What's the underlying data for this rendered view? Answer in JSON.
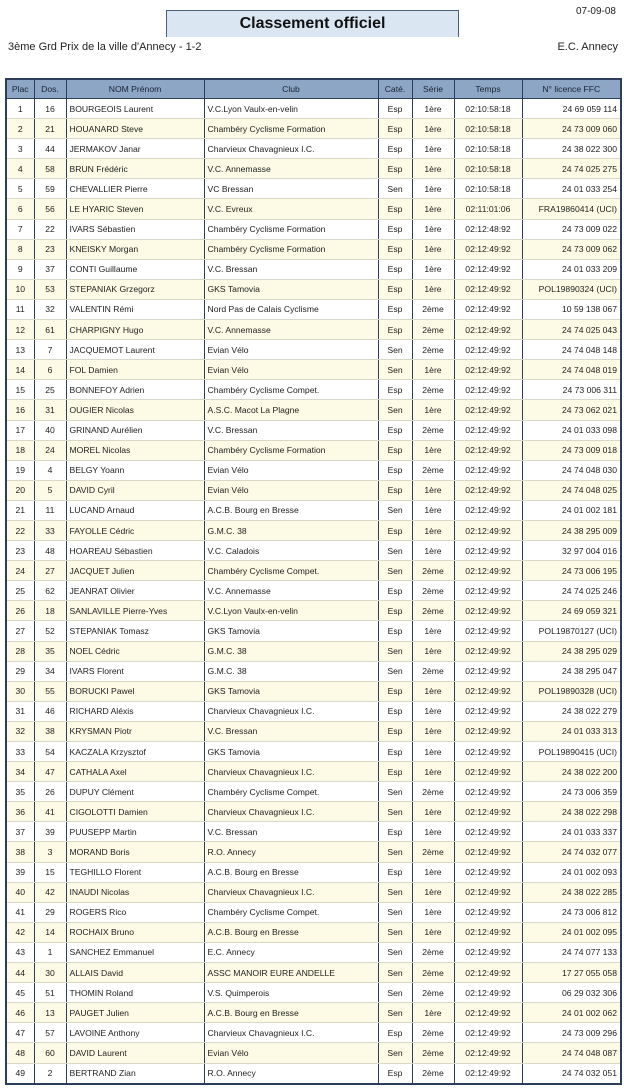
{
  "header": {
    "title": "Classement officiel",
    "date": "07-09-08",
    "event": "3ème Grd Prix de la ville d'Annecy - 1-2",
    "organizer": "E.C. Annecy"
  },
  "colors": {
    "header_bg": "#8ea6c6",
    "title_bg": "#dbe6f3",
    "alt_row": "#fdfbe5",
    "border": "#2c3e5c"
  },
  "table": {
    "columns": [
      "Plac",
      "Dos.",
      "NOM Prénom",
      "Club",
      "Caté.",
      "Série",
      "Temps",
      "N° licence FFC"
    ],
    "rows": [
      [
        "1",
        "16",
        "BOURGEOIS Laurent",
        "V.C.Lyon Vaulx-en-velin",
        "Esp",
        "1ère",
        "02:10:58:18",
        "24 69 059 114"
      ],
      [
        "2",
        "21",
        "HOUANARD Steve",
        "Chambéry Cyclisme Formation",
        "Esp",
        "1ère",
        "02:10:58:18",
        "24 73 009 060"
      ],
      [
        "3",
        "44",
        "JERMAKOV Janar",
        "Charvieux Chavagnieux I.C.",
        "Esp",
        "1ère",
        "02:10:58:18",
        "24 38 022 300"
      ],
      [
        "4",
        "58",
        "BRUN Frédéric",
        "V.C. Annemasse",
        "Esp",
        "1ère",
        "02:10:58:18",
        "24 74 025 275"
      ],
      [
        "5",
        "59",
        "CHEVALLIER Pierre",
        "VC Bressan",
        "Sen",
        "1ère",
        "02:10:58:18",
        "24 01 033 254"
      ],
      [
        "6",
        "56",
        "LE HYARIC Steven",
        "V.C. Evreux",
        "Esp",
        "1ère",
        "02:11:01:06",
        "FRA19860414 (UCI)"
      ],
      [
        "7",
        "22",
        "IVARS Sébastien",
        "Chambéry Cyclisme Formation",
        "Esp",
        "1ère",
        "02:12:48:92",
        "24 73 009 022"
      ],
      [
        "8",
        "23",
        "KNEISKY Morgan",
        "Chambéry Cyclisme Formation",
        "Esp",
        "1ère",
        "02:12:49:92",
        "24 73 009 062"
      ],
      [
        "9",
        "37",
        "CONTI Guillaume",
        "V.C. Bressan",
        "Esp",
        "1ère",
        "02:12:49:92",
        "24 01 033 209"
      ],
      [
        "10",
        "53",
        "STEPANIAK Grzegorz",
        "GKS Tamovia",
        "Esp",
        "1ère",
        "02:12:49:92",
        "POL19890324 (UCI)"
      ],
      [
        "11",
        "32",
        "VALENTIN Rémi",
        "Nord Pas de Calais Cyclisme",
        "Esp",
        "2ème",
        "02:12:49:92",
        "10 59 138 067"
      ],
      [
        "12",
        "61",
        "CHARPIGNY Hugo",
        "V.C. Annemasse",
        "Esp",
        "2ème",
        "02:12:49:92",
        "24 74 025 043"
      ],
      [
        "13",
        "7",
        "JACQUEMOT Laurent",
        "Evian Vélo",
        "Sen",
        "2ème",
        "02:12:49:92",
        "24 74 048 148"
      ],
      [
        "14",
        "6",
        "FOL Damien",
        "Evian Vélo",
        "Sen",
        "1ère",
        "02:12:49:92",
        "24 74 048 019"
      ],
      [
        "15",
        "25",
        "BONNEFOY Adrien",
        "Chambéry Cyclisme Compet.",
        "Esp",
        "2ème",
        "02:12:49:92",
        "24 73 006 311"
      ],
      [
        "16",
        "31",
        "OUGIER Nicolas",
        "A.S.C. Macot La Plagne",
        "Sen",
        "1ère",
        "02:12:49:92",
        "24 73 062 021"
      ],
      [
        "17",
        "40",
        "GRINAND Aurélien",
        "V.C. Bressan",
        "Esp",
        "2ème",
        "02:12:49:92",
        "24 01 033 098"
      ],
      [
        "18",
        "24",
        "MOREL Nicolas",
        "Chambéry Cyclisme Formation",
        "Esp",
        "1ère",
        "02:12:49:92",
        "24 73 009 018"
      ],
      [
        "19",
        "4",
        "BELGY Yoann",
        "Evian Vélo",
        "Esp",
        "2ème",
        "02:12:49:92",
        "24 74 048 030"
      ],
      [
        "20",
        "5",
        "DAVID Cyril",
        "Evian Vélo",
        "Esp",
        "1ère",
        "02:12:49:92",
        "24 74 048 025"
      ],
      [
        "21",
        "11",
        "LUCAND Arnaud",
        "A.C.B. Bourg en Bresse",
        "Sen",
        "1ère",
        "02:12:49:92",
        "24 01 002 181"
      ],
      [
        "22",
        "33",
        "FAYOLLE Cédric",
        "G.M.C. 38",
        "Esp",
        "1ère",
        "02:12:49:92",
        "24 38 295 009"
      ],
      [
        "23",
        "48",
        "HOAREAU Sébastien",
        "V.C. Caladois",
        "Sen",
        "1ère",
        "02:12:49:92",
        "32 97 004 016"
      ],
      [
        "24",
        "27",
        "JACQUET Julien",
        "Chambéry Cyclisme Compet.",
        "Sen",
        "2ème",
        "02:12:49:92",
        "24 73 006 195"
      ],
      [
        "25",
        "62",
        "JEANRAT Olivier",
        "V.C. Annemasse",
        "Esp",
        "2ème",
        "02:12:49:92",
        "24 74 025 246"
      ],
      [
        "26",
        "18",
        "SANLAVILLE Pierre-Yves",
        "V.C.Lyon Vaulx-en-velin",
        "Esp",
        "2ème",
        "02:12:49:92",
        "24 69 059 321"
      ],
      [
        "27",
        "52",
        "STEPANIAK Tomasz",
        "GKS Tamovia",
        "Esp",
        "1ère",
        "02:12:49:92",
        "POL19870127 (UCI)"
      ],
      [
        "28",
        "35",
        "NOEL Cédric",
        "G.M.C. 38",
        "Sen",
        "1ère",
        "02:12:49:92",
        "24 38 295 029"
      ],
      [
        "29",
        "34",
        "IVARS Florent",
        "G.M.C. 38",
        "Sen",
        "2ème",
        "02:12:49:92",
        "24 38 295 047"
      ],
      [
        "30",
        "55",
        "BORUCKI Pawel",
        "GKS Tamovia",
        "Esp",
        "1ère",
        "02:12:49:92",
        "POL19890328 (UCI)"
      ],
      [
        "31",
        "46",
        "RICHARD Aléxis",
        "Charvieux Chavagnieux I.C.",
        "Esp",
        "1ère",
        "02:12:49:92",
        "24 38 022 279"
      ],
      [
        "32",
        "38",
        "KRYSMAN Piotr",
        "V.C. Bressan",
        "Esp",
        "1ère",
        "02:12:49:92",
        "24 01 033 313"
      ],
      [
        "33",
        "54",
        "KACZALA Krzysztof",
        "GKS Tamovia",
        "Esp",
        "1ère",
        "02:12:49:92",
        "POL19890415 (UCI)"
      ],
      [
        "34",
        "47",
        "CATHALA Axel",
        "Charvieux Chavagnieux I.C.",
        "Esp",
        "1ère",
        "02:12:49:92",
        "24 38 022 200"
      ],
      [
        "35",
        "26",
        "DUPUY Clément",
        "Chambéry Cyclisme Compet.",
        "Sen",
        "2ème",
        "02:12:49:92",
        "24 73 006 359"
      ],
      [
        "36",
        "41",
        "CIGOLOTTI Damien",
        "Charvieux Chavagnieux I.C.",
        "Sen",
        "1ère",
        "02:12:49:92",
        "24 38 022 298"
      ],
      [
        "37",
        "39",
        "PUUSEPP Martin",
        "V.C. Bressan",
        "Esp",
        "1ère",
        "02:12:49:92",
        "24 01 033 337"
      ],
      [
        "38",
        "3",
        "MORAND Boris",
        "R.O. Annecy",
        "Sen",
        "2ème",
        "02:12:49:92",
        "24 74 032 077"
      ],
      [
        "39",
        "15",
        "TEGHILLO Florent",
        "A.C.B. Bourg en Bresse",
        "Esp",
        "1ère",
        "02:12:49:92",
        "24 01 002 093"
      ],
      [
        "40",
        "42",
        "INAUDI Nicolas",
        "Charvieux Chavagnieux I.C.",
        "Sen",
        "1ère",
        "02:12:49:92",
        "24 38 022 285"
      ],
      [
        "41",
        "29",
        "ROGERS Rico",
        "Chambéry Cyclisme Compet.",
        "Sen",
        "1ère",
        "02:12:49:92",
        "24 73 006 812"
      ],
      [
        "42",
        "14",
        "ROCHAIX Bruno",
        "A.C.B. Bourg en Bresse",
        "Sen",
        "1ère",
        "02:12:49:92",
        "24 01 002 095"
      ],
      [
        "43",
        "1",
        "SANCHEZ Emmanuel",
        "E.C. Annecy",
        "Sen",
        "2ème",
        "02:12:49:92",
        "24 74 077 133"
      ],
      [
        "44",
        "30",
        "ALLAIS David",
        "ASSC MANOIR EURE ANDELLE",
        "Sen",
        "2ème",
        "02:12:49:92",
        "17 27 055 058"
      ],
      [
        "45",
        "51",
        "THOMIN Roland",
        "V.S. Quimperois",
        "Sen",
        "2ème",
        "02:12:49:92",
        "06 29 032 306"
      ],
      [
        "46",
        "13",
        "PAUGET Julien",
        "A.C.B. Bourg en Bresse",
        "Sen",
        "1ère",
        "02:12:49:92",
        "24 01 002 062"
      ],
      [
        "47",
        "57",
        "LAVOINE Anthony",
        "Charvieux Chavagnieux I.C.",
        "Esp",
        "2ème",
        "02:12:49:92",
        "24 73 009 296"
      ],
      [
        "48",
        "60",
        "DAVID Laurent",
        "Evian Vélo",
        "Sen",
        "2ème",
        "02:12:49:92",
        "24 74 048 087"
      ],
      [
        "49",
        "2",
        "BERTRAND Zian",
        "R.O. Annecy",
        "Esp",
        "2ème",
        "02:12:49:92",
        "24 74 032 051"
      ]
    ]
  }
}
